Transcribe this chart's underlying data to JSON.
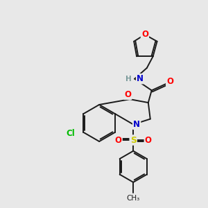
{
  "background_color": "#e8e8e8",
  "bond_color": "#1a1a1a",
  "atom_colors": {
    "O": "#ff0000",
    "N": "#0000cc",
    "S": "#cccc00",
    "Cl": "#00bb00",
    "H": "#7a9a9a",
    "C": "#1a1a1a"
  },
  "figsize": [
    3.0,
    3.0
  ],
  "dpi": 100
}
